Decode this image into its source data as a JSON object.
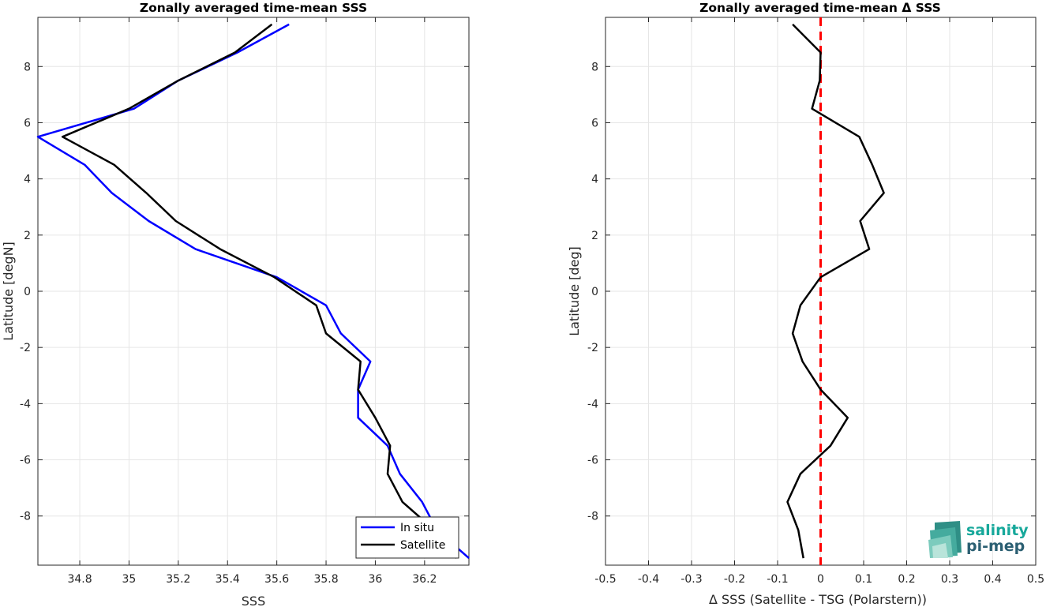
{
  "chart_data": [
    {
      "type": "line",
      "title": "Zonally averaged time-mean SSS",
      "xlabel": "SSS",
      "ylabel": "Latitude [degN]",
      "xlim": [
        34.63,
        36.38
      ],
      "ylim": [
        -9.75,
        9.75
      ],
      "xticks": [
        34.8,
        35,
        35.2,
        35.4,
        35.6,
        35.8,
        36,
        36.2
      ],
      "xtick_labels": [
        "34.8",
        "35",
        "35.2",
        "35.4",
        "35.6",
        "35.8",
        "36",
        "36.2"
      ],
      "yticks": [
        -8,
        -6,
        -4,
        -2,
        0,
        2,
        4,
        6,
        8
      ],
      "ytick_labels": [
        "-8",
        "-6",
        "-4",
        "-2",
        "0",
        "2",
        "4",
        "6",
        "8"
      ],
      "grid": true,
      "legend_position": "bottom-right",
      "series": [
        {
          "name": "In situ",
          "color": "#0000ff",
          "points": [
            [
              35.65,
              9.5
            ],
            [
              35.44,
              8.5
            ],
            [
              35.2,
              7.5
            ],
            [
              35.02,
              6.5
            ],
            [
              34.63,
              5.5
            ],
            [
              34.82,
              4.5
            ],
            [
              34.93,
              3.5
            ],
            [
              35.08,
              2.5
            ],
            [
              35.27,
              1.5
            ],
            [
              35.6,
              0.5
            ],
            [
              35.8,
              -0.5
            ],
            [
              35.86,
              -1.5
            ],
            [
              35.98,
              -2.5
            ],
            [
              35.93,
              -3.5
            ],
            [
              35.93,
              -4.5
            ],
            [
              36.05,
              -5.5
            ],
            [
              36.1,
              -6.5
            ],
            [
              36.19,
              -7.5
            ],
            [
              36.25,
              -8.5
            ],
            [
              36.38,
              -9.5
            ]
          ]
        },
        {
          "name": "Satellite",
          "color": "#000000",
          "points": [
            [
              35.58,
              9.5
            ],
            [
              35.43,
              8.5
            ],
            [
              35.2,
              7.5
            ],
            [
              35.0,
              6.5
            ],
            [
              34.73,
              5.5
            ],
            [
              34.94,
              4.5
            ],
            [
              35.07,
              3.5
            ],
            [
              35.19,
              2.5
            ],
            [
              35.37,
              1.5
            ],
            [
              35.59,
              0.5
            ],
            [
              35.76,
              -0.5
            ],
            [
              35.8,
              -1.5
            ],
            [
              35.94,
              -2.5
            ],
            [
              35.93,
              -3.5
            ],
            [
              36.0,
              -4.5
            ],
            [
              36.06,
              -5.5
            ],
            [
              36.05,
              -6.5
            ],
            [
              36.11,
              -7.5
            ],
            [
              36.24,
              -8.5
            ],
            [
              36.33,
              -9.5
            ]
          ]
        }
      ]
    },
    {
      "type": "line",
      "title": "Zonally averaged time-mean Δ SSS",
      "xlabel": "Δ SSS (Satellite - TSG (Polarstern))",
      "ylabel": "Latitude [deg]",
      "xlim": [
        -0.5,
        0.5
      ],
      "ylim": [
        -9.75,
        9.75
      ],
      "xticks": [
        -0.5,
        -0.4,
        -0.3,
        -0.2,
        -0.1,
        0,
        0.1,
        0.2,
        0.3,
        0.4,
        0.5
      ],
      "xtick_labels": [
        "-0.5",
        "-0.4",
        "-0.3",
        "-0.2",
        "-0.1",
        "0",
        "0.1",
        "0.2",
        "0.3",
        "0.4",
        "0.5"
      ],
      "yticks": [
        -8,
        -6,
        -4,
        -2,
        0,
        2,
        4,
        6,
        8
      ],
      "ytick_labels": [
        "-8",
        "-6",
        "-4",
        "-2",
        "0",
        "2",
        "4",
        "6",
        "8"
      ],
      "grid": true,
      "reference_line": {
        "x": 0,
        "color": "#ff0000",
        "style": "dashed"
      },
      "series": [
        {
          "name": "",
          "color": "#000000",
          "points": [
            [
              -0.065,
              9.5
            ],
            [
              0.0,
              8.5
            ],
            [
              -0.002,
              7.5
            ],
            [
              -0.02,
              6.5
            ],
            [
              0.09,
              5.5
            ],
            [
              0.12,
              4.5
            ],
            [
              0.147,
              3.5
            ],
            [
              0.092,
              2.5
            ],
            [
              0.113,
              1.5
            ],
            [
              0.0,
              0.5
            ],
            [
              -0.047,
              -0.5
            ],
            [
              -0.065,
              -1.5
            ],
            [
              -0.042,
              -2.5
            ],
            [
              0.0,
              -3.5
            ],
            [
              0.063,
              -4.5
            ],
            [
              0.023,
              -5.5
            ],
            [
              -0.047,
              -6.5
            ],
            [
              -0.077,
              -7.5
            ],
            [
              -0.052,
              -8.5
            ],
            [
              -0.04,
              -9.5
            ]
          ]
        }
      ]
    }
  ],
  "logo": {
    "line1": "salinity",
    "line2": "pi-mep"
  }
}
